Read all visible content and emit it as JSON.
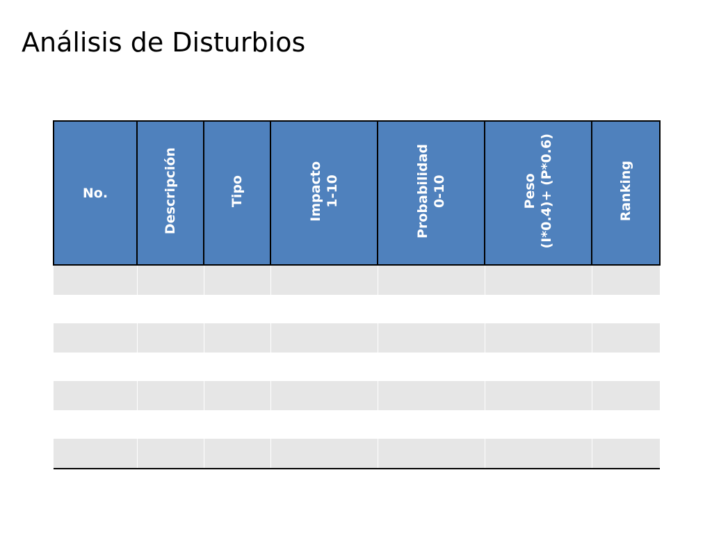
{
  "slide": {
    "title": "Análisis de Disturbios"
  },
  "table": {
    "columns": [
      {
        "label": "No.",
        "rotated": false,
        "lines": [
          "No."
        ]
      },
      {
        "label": "Descripción",
        "rotated": true,
        "lines": [
          "Descripción"
        ]
      },
      {
        "label": "Tipo",
        "rotated": true,
        "lines": [
          "Tipo"
        ]
      },
      {
        "label": "Impacto 1-10",
        "rotated": true,
        "lines": [
          "Impacto",
          "1-10"
        ]
      },
      {
        "label": "Probabilidad 0-10",
        "rotated": true,
        "lines": [
          "Probabilidad",
          "0-10"
        ]
      },
      {
        "label": "Peso (I*0.4)+ (P*0.6)",
        "rotated": true,
        "lines": [
          "Peso",
          "(I*0.4)+ (P*0.6)"
        ]
      },
      {
        "label": "Ranking",
        "rotated": true,
        "lines": [
          "Ranking"
        ]
      }
    ],
    "rows": [
      [
        "",
        "",
        "",
        "",
        "",
        "",
        ""
      ],
      [
        "",
        "",
        "",
        "",
        "",
        "",
        ""
      ],
      [
        "",
        "",
        "",
        "",
        "",
        "",
        ""
      ],
      [
        "",
        "",
        "",
        "",
        "",
        "",
        ""
      ],
      [
        "",
        "",
        "",
        "",
        "",
        "",
        ""
      ],
      [
        "",
        "",
        "",
        "",
        "",
        "",
        ""
      ],
      [
        "",
        "",
        "",
        "",
        "",
        "",
        ""
      ]
    ]
  },
  "colors": {
    "header_fill": "#4f81bd",
    "header_text": "#ffffff",
    "band_fill": "#e6e6e6",
    "border": "#000000"
  }
}
